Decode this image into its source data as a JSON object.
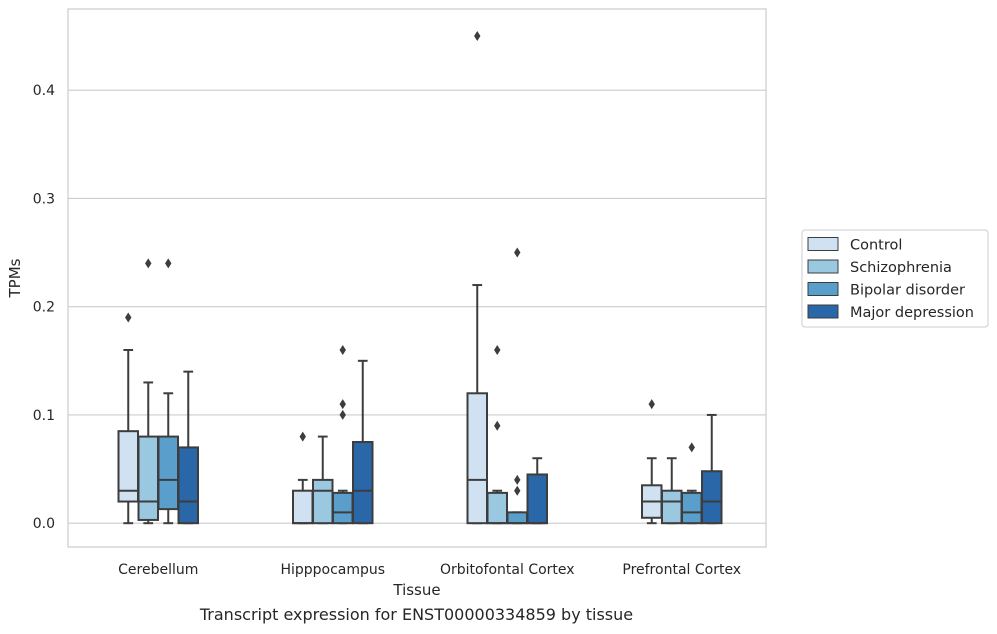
{
  "caption": "Transcript expression for ENST00000334859 by tissue",
  "chart_data": {
    "type": "box",
    "title": "",
    "xlabel": "Tissue",
    "ylabel": "TPMs",
    "ylim": [
      -0.022,
      0.475
    ],
    "yticks": [
      0.0,
      0.1,
      0.2,
      0.3,
      0.4
    ],
    "ytick_labels": [
      "0.0",
      "0.1",
      "0.2",
      "0.3",
      "0.4"
    ],
    "grid": "horizontal",
    "legend_position": "right",
    "categories": [
      "Cerebellum",
      "Hipppocampus",
      "Orbitofontal Cortex",
      "Prefrontal Cortex"
    ],
    "series": [
      {
        "name": "Control",
        "color": "#d0e1f2",
        "boxes": [
          {
            "whislo": 0.0,
            "q1": 0.02,
            "median": 0.03,
            "q3": 0.085,
            "whishi": 0.16,
            "fliers": [
              0.19
            ]
          },
          {
            "whislo": 0.0,
            "q1": 0.0,
            "median": 0.0,
            "q3": 0.03,
            "whishi": 0.04,
            "fliers": [
              0.08
            ]
          },
          {
            "whislo": 0.0,
            "q1": 0.0,
            "median": 0.04,
            "q3": 0.12,
            "whishi": 0.22,
            "fliers": [
              0.45
            ]
          },
          {
            "whislo": 0.0,
            "q1": 0.005,
            "median": 0.02,
            "q3": 0.035,
            "whishi": 0.06,
            "fliers": [
              0.11
            ]
          }
        ]
      },
      {
        "name": "Schizophrenia",
        "color": "#9ac8e0",
        "boxes": [
          {
            "whislo": 0.0,
            "q1": 0.003,
            "median": 0.02,
            "q3": 0.08,
            "whishi": 0.13,
            "fliers": [
              0.24
            ]
          },
          {
            "whislo": 0.0,
            "q1": 0.0,
            "median": 0.03,
            "q3": 0.04,
            "whishi": 0.08,
            "fliers": []
          },
          {
            "whislo": 0.0,
            "q1": 0.0,
            "median": 0.0,
            "q3": 0.028,
            "whishi": 0.03,
            "fliers": [
              0.09,
              0.16
            ]
          },
          {
            "whislo": 0.0,
            "q1": 0.0,
            "median": 0.02,
            "q3": 0.03,
            "whishi": 0.06,
            "fliers": []
          }
        ]
      },
      {
        "name": "Bipolar disorder",
        "color": "#5a9fcc",
        "boxes": [
          {
            "whislo": 0.0,
            "q1": 0.013,
            "median": 0.04,
            "q3": 0.08,
            "whishi": 0.12,
            "fliers": [
              0.24
            ]
          },
          {
            "whislo": 0.0,
            "q1": 0.0,
            "median": 0.01,
            "q3": 0.028,
            "whishi": 0.03,
            "fliers": [
              0.1,
              0.11,
              0.16
            ]
          },
          {
            "whislo": 0.0,
            "q1": 0.0,
            "median": 0.0,
            "q3": 0.01,
            "whishi": 0.01,
            "fliers": [
              0.03,
              0.04,
              0.25
            ]
          },
          {
            "whislo": 0.0,
            "q1": 0.0,
            "median": 0.01,
            "q3": 0.028,
            "whishi": 0.03,
            "fliers": [
              0.07
            ]
          }
        ]
      },
      {
        "name": "Major depression",
        "color": "#2967a8",
        "boxes": [
          {
            "whislo": 0.0,
            "q1": 0.0,
            "median": 0.02,
            "q3": 0.07,
            "whishi": 0.14,
            "fliers": []
          },
          {
            "whislo": 0.0,
            "q1": 0.0,
            "median": 0.03,
            "q3": 0.075,
            "whishi": 0.15,
            "fliers": []
          },
          {
            "whislo": 0.0,
            "q1": 0.0,
            "median": 0.0,
            "q3": 0.045,
            "whishi": 0.06,
            "fliers": []
          },
          {
            "whislo": 0.0,
            "q1": 0.0,
            "median": 0.02,
            "q3": 0.048,
            "whishi": 0.1,
            "fliers": []
          }
        ]
      }
    ]
  }
}
